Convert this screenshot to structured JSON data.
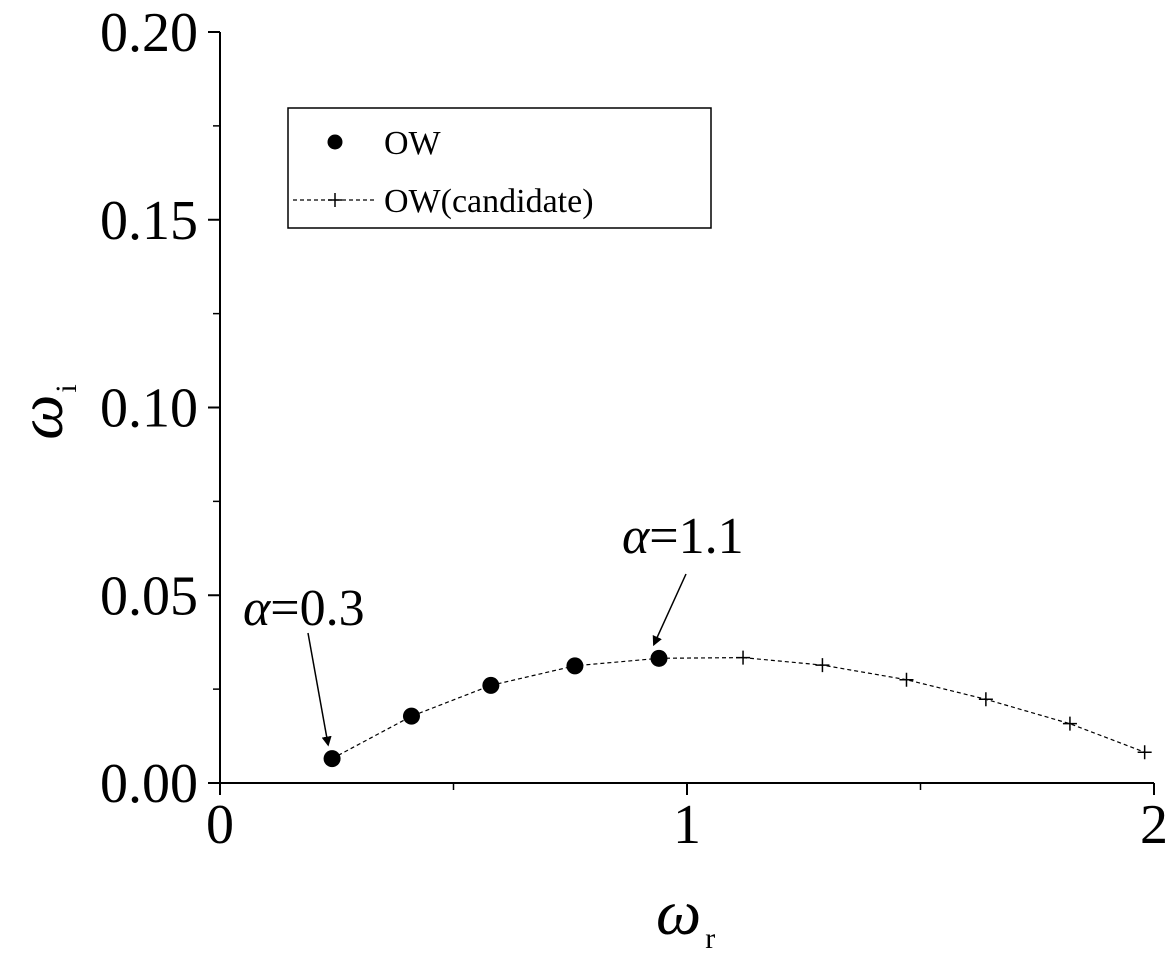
{
  "chart_data": {
    "type": "scatter",
    "title": "",
    "xlabel": {
      "symbol": "ω",
      "subscript": "r"
    },
    "ylabel": {
      "symbol": "ω",
      "subscript": "i"
    },
    "xlim": [
      0,
      2
    ],
    "ylim": [
      0,
      0.2
    ],
    "x_ticks": [
      "0",
      "1",
      "2"
    ],
    "y_ticks": [
      "0.00",
      "0.05",
      "0.10",
      "0.15",
      "0.20"
    ],
    "grid": false,
    "legend_position": "top-left",
    "series": [
      {
        "name": "OW",
        "marker": "filled-circle",
        "line": "dashed",
        "x": [
          0.24,
          0.41,
          0.58,
          0.76,
          0.94
        ],
        "y": [
          0.0065,
          0.0178,
          0.026,
          0.0312,
          0.0332
        ]
      },
      {
        "name": "OW(candidate)",
        "marker": "plus",
        "line": "dashed",
        "x": [
          0.94,
          1.12,
          1.29,
          1.47,
          1.64,
          1.82,
          1.98
        ],
        "y": [
          0.0332,
          0.0334,
          0.0314,
          0.0275,
          0.0223,
          0.0158,
          0.0082
        ]
      }
    ],
    "annotations": [
      {
        "symbol": "α",
        "text": "=0.3",
        "point": [
          0.24,
          0.0065
        ]
      },
      {
        "symbol": "α",
        "text": "=1.1",
        "point": [
          0.94,
          0.0332
        ]
      }
    ]
  }
}
